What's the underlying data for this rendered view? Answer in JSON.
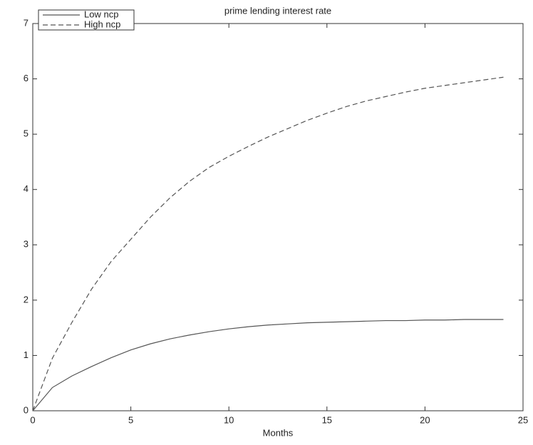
{
  "chart_data": {
    "type": "line",
    "title": "prime lending interest rate",
    "x_label": "Months",
    "x": [
      0,
      1,
      2,
      3,
      4,
      5,
      6,
      7,
      8,
      9,
      10,
      11,
      12,
      13,
      14,
      15,
      16,
      17,
      18,
      19,
      20,
      21,
      22,
      23,
      24
    ],
    "series": [
      {
        "name": "Low ncp",
        "color": "#555555",
        "dashed": false,
        "values": [
          0,
          0.42,
          0.63,
          0.8,
          0.96,
          1.1,
          1.21,
          1.3,
          1.37,
          1.43,
          1.48,
          1.52,
          1.55,
          1.57,
          1.59,
          1.6,
          1.61,
          1.62,
          1.63,
          1.63,
          1.64,
          1.64,
          1.65,
          1.65,
          1.65
        ]
      },
      {
        "name": "High ncp",
        "color": "#555555",
        "dashed": true,
        "values": [
          0,
          0.95,
          1.6,
          2.2,
          2.7,
          3.1,
          3.5,
          3.85,
          4.15,
          4.4,
          4.6,
          4.78,
          4.95,
          5.1,
          5.25,
          5.38,
          5.5,
          5.6,
          5.68,
          5.76,
          5.83,
          5.88,
          5.93,
          5.98,
          6.03
        ]
      }
    ],
    "xlim": [
      0,
      25
    ],
    "xticks": [
      0,
      5,
      10,
      15,
      20,
      25
    ],
    "ylim": [
      0,
      7
    ],
    "yticks": [
      0,
      1,
      2,
      3,
      4,
      5,
      6,
      7
    ],
    "legend": "top-left"
  }
}
